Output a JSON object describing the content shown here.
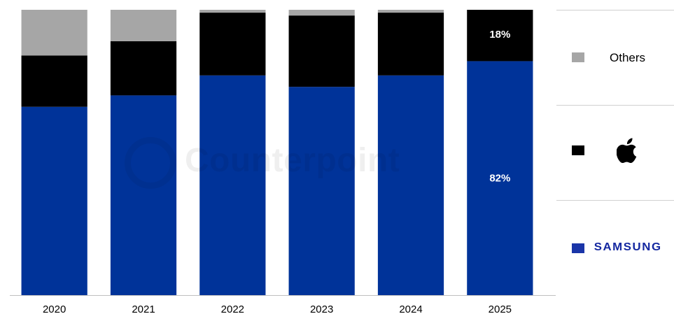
{
  "chart_data": {
    "type": "bar",
    "stacked": true,
    "categories": [
      "2020",
      "2021",
      "2022",
      "2023",
      "2024",
      "2025"
    ],
    "series": [
      {
        "name": "SAMSUNG",
        "color": "#003399",
        "values": [
          66,
          70,
          77,
          73,
          77,
          82
        ]
      },
      {
        "name": "Apple",
        "color": "#000000",
        "values": [
          18,
          19,
          22,
          25,
          22,
          18
        ]
      },
      {
        "name": "Others",
        "color": "#a6a6a6",
        "values": [
          16,
          11,
          1,
          2,
          1,
          0
        ]
      }
    ],
    "data_labels": [
      {
        "category": "2025",
        "series": "Apple",
        "text": "18%"
      },
      {
        "category": "2025",
        "series": "SAMSUNG",
        "text": "82%"
      }
    ],
    "ylim": [
      0,
      100
    ],
    "grid": false,
    "legend_position": "right"
  },
  "legend": {
    "others_label": "Others",
    "apple_icon": "apple-logo",
    "samsung_wordmark": "SAMSUNG"
  },
  "watermark": {
    "text": "Counterpoint"
  }
}
